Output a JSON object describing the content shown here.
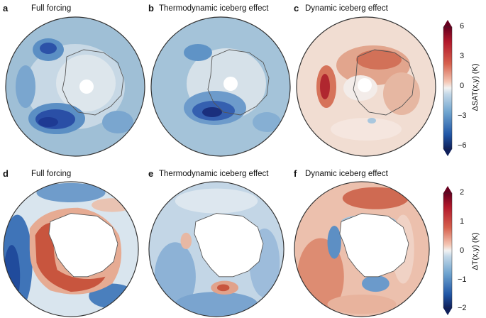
{
  "panels": [
    {
      "letter": "a",
      "title": "Full forcing"
    },
    {
      "letter": "b",
      "title": "Thermodynamic iceberg effect"
    },
    {
      "letter": "c",
      "title": "Dynamic iceberg effect"
    },
    {
      "letter": "d",
      "title": "Full forcing"
    },
    {
      "letter": "e",
      "title": "Thermodynamic iceberg effect"
    },
    {
      "letter": "f",
      "title": "Dynamic iceberg effect"
    }
  ],
  "colorbar_top": {
    "label": "ΔSAT(x,y) (K)",
    "ticks": [
      "6",
      "3",
      "0",
      "−3",
      "−6"
    ],
    "range": [
      -6,
      6
    ]
  },
  "colorbar_bottom": {
    "label": "ΔT(x,y) (K)",
    "ticks": [
      "2",
      "1",
      "0",
      "−1",
      "−2"
    ],
    "range": [
      -2,
      2
    ]
  },
  "colors": {
    "deep_blue": "#1f3d9c",
    "mid_blue": "#5b8fc4",
    "light_blue": "#a9c7de",
    "pale": "#e9eef2",
    "light_red": "#efc3b0",
    "mid_red": "#d6735a",
    "deep_red": "#a51c2a",
    "land": "#ffffff",
    "outline": "#333333"
  }
}
